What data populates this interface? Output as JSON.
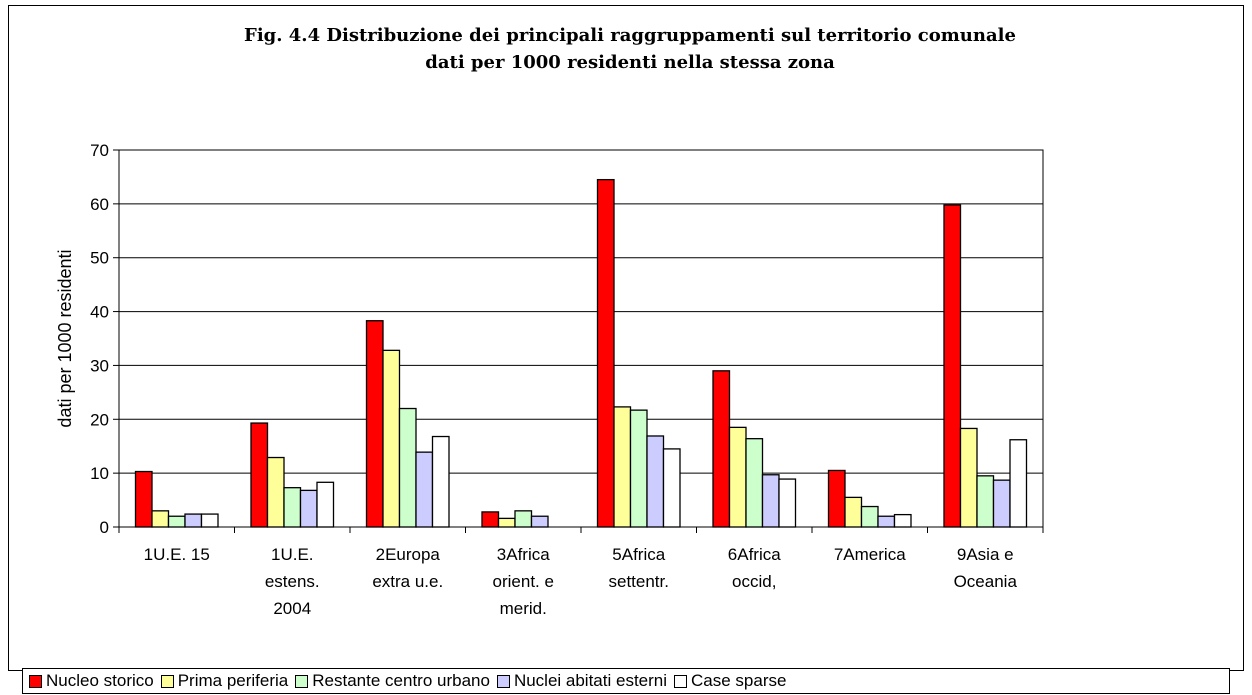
{
  "chart_data": {
    "type": "bar",
    "title": "Fig. 4.4 Distribuzione dei principali raggruppamenti sul territorio comunale",
    "subtitle": "dati per 1000 residenti nella stessa zona",
    "xlabel": "",
    "ylabel": "dati per 1000 residenti",
    "ylim": [
      0,
      70
    ],
    "yticks": [
      "0",
      "10",
      "20",
      "30",
      "40",
      "50",
      "60",
      "70"
    ],
    "grid": true,
    "legend_position": "bottom",
    "categories": [
      [
        "1U.E. 15"
      ],
      [
        "1U.E.",
        "estens.",
        "2004"
      ],
      [
        "2Europa",
        "extra u.e."
      ],
      [
        "3Africa",
        "orient. e",
        "merid."
      ],
      [
        "5Africa",
        "settentr."
      ],
      [
        "6Africa",
        "occid,"
      ],
      [
        "7America"
      ],
      [
        "9Asia e",
        "Oceania"
      ]
    ],
    "series": [
      {
        "name": "Nucleo storico",
        "color": "#ff0000",
        "values": [
          10.3,
          19.3,
          38.3,
          2.8,
          64.5,
          29.0,
          10.5,
          59.8
        ]
      },
      {
        "name": "Prima periferia",
        "color": "#ffff99",
        "values": [
          3.0,
          12.9,
          32.8,
          1.6,
          22.3,
          18.5,
          5.5,
          18.3
        ]
      },
      {
        "name": "Restante centro urbano",
        "color": "#ccffcc",
        "values": [
          2.0,
          7.3,
          22.0,
          3.0,
          21.7,
          16.4,
          3.8,
          9.5
        ]
      },
      {
        "name": "Nuclei abitati esterni",
        "color": "#ccccff",
        "values": [
          2.4,
          6.8,
          13.9,
          2.0,
          16.9,
          9.7,
          2.0,
          8.7
        ]
      },
      {
        "name": "Case sparse",
        "color": "#ffffff",
        "values": [
          2.4,
          8.3,
          16.8,
          0,
          14.5,
          8.9,
          2.3,
          16.2
        ]
      }
    ]
  }
}
